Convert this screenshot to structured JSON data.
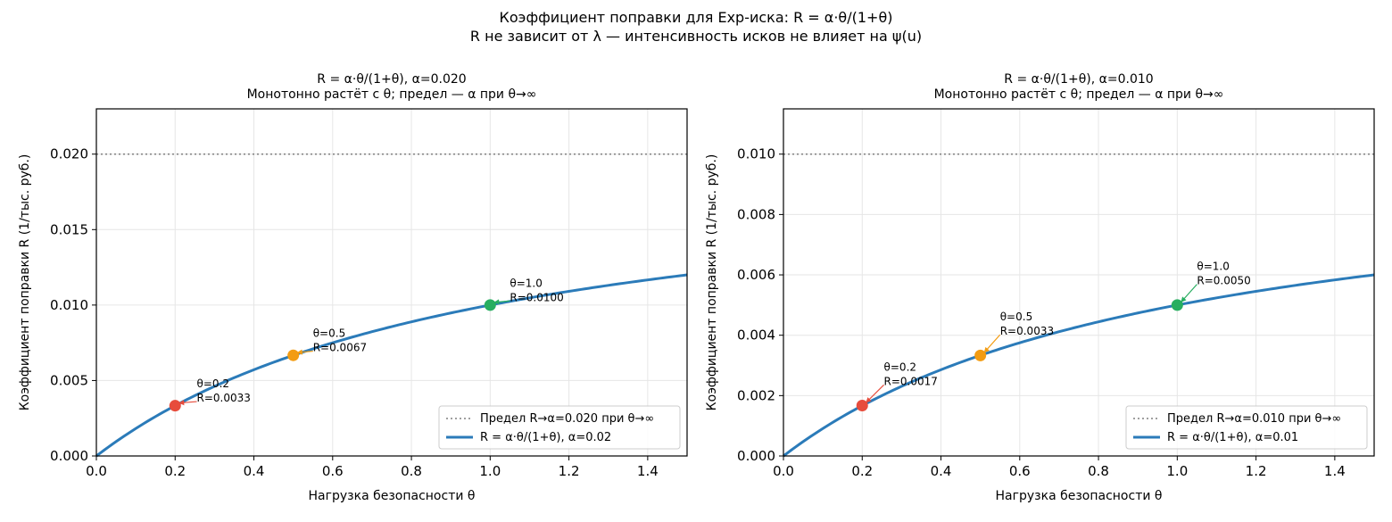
{
  "figure": {
    "suptitle_line1": "Коэффициент поправки для Exp-иска: R = α·θ/(1+θ)",
    "suptitle_line2": "R не зависит от λ — интенсивность исков не влияет на ψ(u)"
  },
  "colors": {
    "curve": "#2b7bb9",
    "limit_line": "#808080",
    "marker_0_2": "#e74c3c",
    "marker_0_5": "#f39c12",
    "marker_1_0": "#27ae60",
    "grid": "#e6e6e6"
  },
  "chart_data": [
    {
      "type": "line",
      "title_line1": "R = α·θ/(1+θ),  α=0.020",
      "title_line2": "Монотонно растёт с θ; предел — α при θ→∞",
      "xlabel": "Нагрузка безопасности θ",
      "ylabel": "Коэффициент поправки R (1/тыс. руб.)",
      "alpha": 0.02,
      "xlim": [
        0,
        1.5
      ],
      "ylim": [
        0,
        0.023
      ],
      "xticks": [
        "0.0",
        "0.2",
        "0.4",
        "0.6",
        "0.8",
        "1.0",
        "1.2",
        "1.4"
      ],
      "xtick_values": [
        0,
        0.2,
        0.4,
        0.6,
        0.8,
        1.0,
        1.2,
        1.4
      ],
      "yticks": [
        "0.000",
        "0.005",
        "0.010",
        "0.015",
        "0.020"
      ],
      "ytick_values": [
        0,
        0.005,
        0.01,
        0.015,
        0.02
      ],
      "grid": true,
      "legend_position": "lower-right",
      "series": [
        {
          "name": "Предел R→α=0.020 при θ→∞",
          "kind": "hline",
          "y": 0.02,
          "style": "dotted"
        },
        {
          "name": "R = α·θ/(1+θ),  α=0.02",
          "kind": "curve",
          "x": [
            0,
            0.1,
            0.2,
            0.3,
            0.4,
            0.5,
            0.6,
            0.7,
            0.8,
            0.9,
            1.0,
            1.1,
            1.2,
            1.3,
            1.4,
            1.5
          ],
          "y": [
            0,
            0.00182,
            0.00333,
            0.00462,
            0.00571,
            0.00667,
            0.0075,
            0.00824,
            0.00889,
            0.00947,
            0.01,
            0.01048,
            0.01091,
            0.0113,
            0.01167,
            0.012
          ]
        }
      ],
      "points": [
        {
          "x": 0.2,
          "y": 0.00333,
          "label1": "θ=0.2",
          "label2": "R=0.0033",
          "color": "#e74c3c"
        },
        {
          "x": 0.5,
          "y": 0.00667,
          "label1": "θ=0.5",
          "label2": "R=0.0067",
          "color": "#f39c12"
        },
        {
          "x": 1.0,
          "y": 0.01,
          "label1": "θ=1.0",
          "label2": "R=0.0100",
          "color": "#27ae60"
        }
      ]
    },
    {
      "type": "line",
      "title_line1": "R = α·θ/(1+θ),  α=0.010",
      "title_line2": "Монотонно растёт с θ; предел — α при θ→∞",
      "xlabel": "Нагрузка безопасности θ",
      "ylabel": "Коэффициент поправки R (1/тыс. руб.)",
      "alpha": 0.01,
      "xlim": [
        0,
        1.5
      ],
      "ylim": [
        0,
        0.0115
      ],
      "xticks": [
        "0.0",
        "0.2",
        "0.4",
        "0.6",
        "0.8",
        "1.0",
        "1.2",
        "1.4"
      ],
      "xtick_values": [
        0,
        0.2,
        0.4,
        0.6,
        0.8,
        1.0,
        1.2,
        1.4
      ],
      "yticks": [
        "0.000",
        "0.002",
        "0.004",
        "0.006",
        "0.008",
        "0.010"
      ],
      "ytick_values": [
        0,
        0.002,
        0.004,
        0.006,
        0.008,
        0.01
      ],
      "grid": true,
      "legend_position": "lower-right",
      "series": [
        {
          "name": "Предел R→α=0.010 при θ→∞",
          "kind": "hline",
          "y": 0.01,
          "style": "dotted"
        },
        {
          "name": "R = α·θ/(1+θ),  α=0.01",
          "kind": "curve",
          "x": [
            0,
            0.1,
            0.2,
            0.3,
            0.4,
            0.5,
            0.6,
            0.7,
            0.8,
            0.9,
            1.0,
            1.1,
            1.2,
            1.3,
            1.4,
            1.5
          ],
          "y": [
            0,
            0.00091,
            0.00167,
            0.00231,
            0.00286,
            0.00333,
            0.00375,
            0.00412,
            0.00444,
            0.00474,
            0.005,
            0.00524,
            0.00545,
            0.00565,
            0.00583,
            0.006
          ]
        }
      ],
      "points": [
        {
          "x": 0.2,
          "y": 0.00167,
          "label1": "θ=0.2",
          "label2": "R=0.0017",
          "color": "#e74c3c"
        },
        {
          "x": 0.5,
          "y": 0.00333,
          "label1": "θ=0.5",
          "label2": "R=0.0033",
          "color": "#f39c12"
        },
        {
          "x": 1.0,
          "y": 0.005,
          "label1": "θ=1.0",
          "label2": "R=0.0050",
          "color": "#27ae60"
        }
      ]
    }
  ]
}
